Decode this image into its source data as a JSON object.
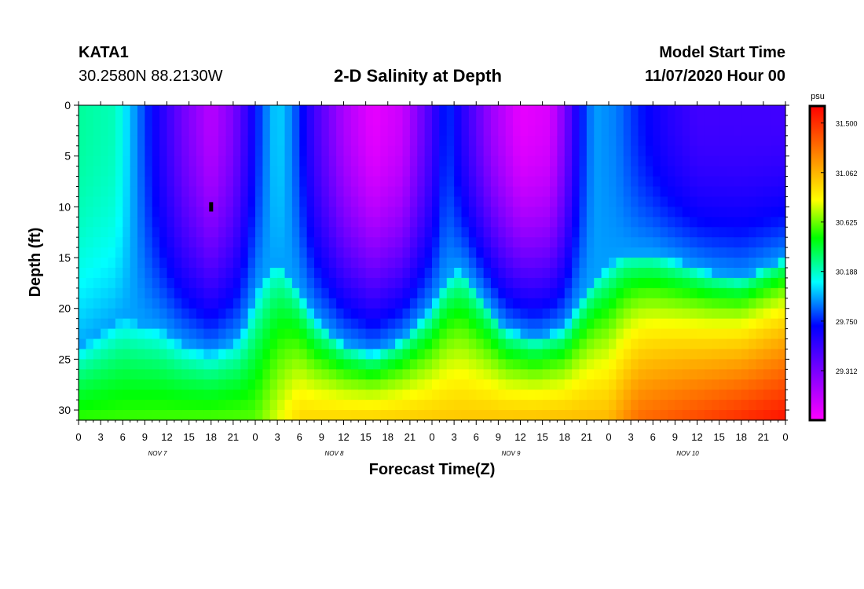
{
  "header": {
    "station": "KATA1",
    "coordinates": "30.2580N 88.2130W",
    "title": "2-D Salinity at Depth",
    "model_start_label": "Model Start Time",
    "model_start_value": "11/07/2020 Hour 00"
  },
  "colors": {
    "palette": [
      "#ff00ff",
      "#8800ff",
      "#0000ff",
      "#00ffff",
      "#00ff00",
      "#ffff00",
      "#ff8800",
      "#ff0000"
    ]
  },
  "chart_data": {
    "type": "heatmap",
    "title": "2-D Salinity at Depth",
    "xlabel": "Forecast Time(Z)",
    "ylabel": "Depth (ft)",
    "x_tick_labels": [
      "0",
      "3",
      "6",
      "9",
      "12",
      "15",
      "18",
      "21",
      "0",
      "3",
      "6",
      "9",
      "12",
      "15",
      "18",
      "21",
      "0",
      "3",
      "6",
      "9",
      "12",
      "15",
      "18",
      "21",
      "0",
      "3",
      "6",
      "9",
      "12",
      "15",
      "18",
      "21",
      "0"
    ],
    "day_labels": [
      {
        "label": "NOV 7",
        "hour": 12
      },
      {
        "label": "NOV 8",
        "hour": 36
      },
      {
        "label": "NOV 9",
        "hour": 60
      },
      {
        "label": "NOV 10",
        "hour": 84
      }
    ],
    "xlim_hours": [
      0,
      96
    ],
    "ylim_ft": [
      0,
      31
    ],
    "y_ticks": [
      0,
      5,
      10,
      15,
      20,
      25,
      30
    ],
    "colorbar": {
      "unit": "psu",
      "min": 28.875,
      "max": 31.65,
      "ticks": [
        "31.500",
        "31.062",
        "30.625",
        "30.188",
        "29.750",
        "29.312"
      ]
    },
    "marker": {
      "hour": 18,
      "depth_ft": 10
    },
    "surface_profile": [
      {
        "hour": 0,
        "value": 30.25
      },
      {
        "hour": 5,
        "value": 30.2
      },
      {
        "hour": 10,
        "value": 29.7
      },
      {
        "hour": 14,
        "value": 29.35
      },
      {
        "hour": 18,
        "value": 29.1
      },
      {
        "hour": 21,
        "value": 29.3
      },
      {
        "hour": 25,
        "value": 29.85
      },
      {
        "hour": 27,
        "value": 30.05
      },
      {
        "hour": 29,
        "value": 29.9
      },
      {
        "hour": 32,
        "value": 29.5
      },
      {
        "hour": 36,
        "value": 29.15
      },
      {
        "hour": 40,
        "value": 28.95
      },
      {
        "hour": 44,
        "value": 29.05
      },
      {
        "hour": 48,
        "value": 29.5
      },
      {
        "hour": 50,
        "value": 29.8
      },
      {
        "hour": 52,
        "value": 29.6
      },
      {
        "hour": 56,
        "value": 29.2
      },
      {
        "hour": 60,
        "value": 28.95
      },
      {
        "hour": 64,
        "value": 29.0
      },
      {
        "hour": 66,
        "value": 29.3
      },
      {
        "hour": 68,
        "value": 29.7
      },
      {
        "hour": 70,
        "value": 29.95
      },
      {
        "hour": 73,
        "value": 29.9
      },
      {
        "hour": 76,
        "value": 29.75
      },
      {
        "hour": 80,
        "value": 29.6
      },
      {
        "hour": 84,
        "value": 29.5
      },
      {
        "hour": 96,
        "value": 29.5
      }
    ],
    "halocline_depth_ft": [
      {
        "hour": 0,
        "depth": 24
      },
      {
        "hour": 6,
        "depth": 21
      },
      {
        "hour": 11,
        "depth": 22
      },
      {
        "hour": 14,
        "depth": 23.5
      },
      {
        "hour": 18,
        "depth": 24.5
      },
      {
        "hour": 22,
        "depth": 23
      },
      {
        "hour": 25,
        "depth": 17
      },
      {
        "hour": 27,
        "depth": 15
      },
      {
        "hour": 29,
        "depth": 17
      },
      {
        "hour": 32,
        "depth": 21
      },
      {
        "hour": 36,
        "depth": 23.5
      },
      {
        "hour": 40,
        "depth": 24.5
      },
      {
        "hour": 44,
        "depth": 23
      },
      {
        "hour": 48,
        "depth": 20
      },
      {
        "hour": 50,
        "depth": 17
      },
      {
        "hour": 52,
        "depth": 16
      },
      {
        "hour": 55,
        "depth": 19
      },
      {
        "hour": 58,
        "depth": 22
      },
      {
        "hour": 62,
        "depth": 23
      },
      {
        "hour": 66,
        "depth": 22
      },
      {
        "hour": 70,
        "depth": 17
      },
      {
        "hour": 74,
        "depth": 14.5
      },
      {
        "hour": 78,
        "depth": 14.5
      },
      {
        "hour": 82,
        "depth": 15.5
      },
      {
        "hour": 86,
        "depth": 16.5
      },
      {
        "hour": 90,
        "depth": 17
      },
      {
        "hour": 93,
        "depth": 16
      },
      {
        "hour": 96,
        "depth": 15
      }
    ],
    "bottom_profile": [
      {
        "hour": 0,
        "value": 30.55
      },
      {
        "hour": 24,
        "value": 30.6
      },
      {
        "hour": 30,
        "value": 30.95
      },
      {
        "hour": 48,
        "value": 31.0
      },
      {
        "hour": 72,
        "value": 31.05
      },
      {
        "hour": 76,
        "value": 31.3
      },
      {
        "hour": 96,
        "value": 31.6
      }
    ]
  }
}
